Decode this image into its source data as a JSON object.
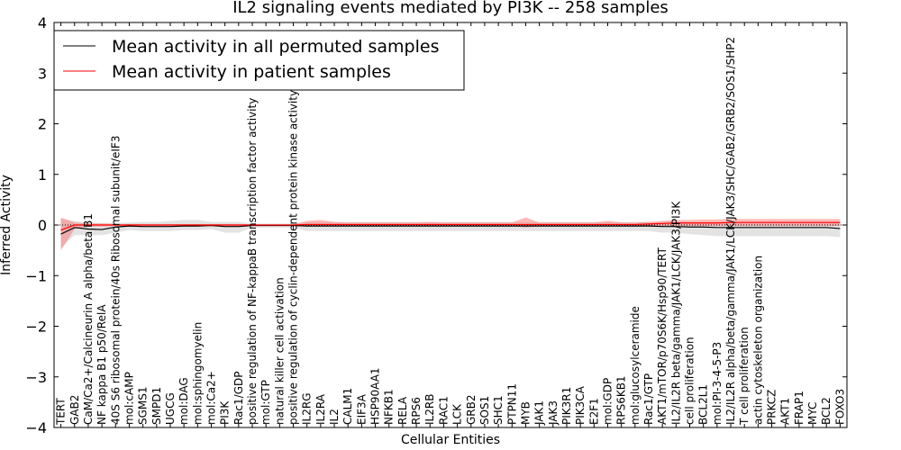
{
  "chart_data": {
    "type": "line",
    "title": "IL2 signaling events mediated by PI3K -- 258 samples",
    "xlabel": "Cellular Entities",
    "ylabel": "Inferred Activity",
    "ylim": [
      -4,
      4
    ],
    "yticks": [
      -4,
      -3,
      -2,
      -1,
      0,
      1,
      2,
      3,
      4
    ],
    "ytick_labels": [
      "−4",
      "−3",
      "−2",
      "−1",
      "0",
      "1",
      "2",
      "3",
      "4"
    ],
    "grid": false,
    "legend_position": "top-left",
    "colors": {
      "permuted": "#000000",
      "patient": "#ff0000",
      "permuted_band": "#cccccc",
      "patient_band": "#ff6666"
    },
    "categories": [
      "TERT",
      "GAB2",
      "CaM/Ca2+/Calcineurin A alpha/beta B1",
      "NF kappa B1 p50/RelA",
      "40S S6 ribosomal protein/40s Ribosomal subunit/eIF3",
      "mol:cAMP",
      "SGMS1",
      "SMPD1",
      "UGCG",
      "mol:DAG",
      "mol:sphingomyelin",
      "mol:Ca2+",
      "PI3K",
      "Rac1/GDP",
      "positive regulation of NF-kappaB transcription factor activity",
      "mol:GTP",
      "natural killer cell activation",
      "positive regulation of cyclin-dependent protein kinase activity",
      "IL2RG",
      "IL2RA",
      "IL2",
      "CALM1",
      "EIF3A",
      "HSP90AA1",
      "NFKB1",
      "RELA",
      "RPS6",
      "IL2RB",
      "RAC1",
      "LCK",
      "GRB2",
      "SOS1",
      "SHC1",
      "PTPN11",
      "MYB",
      "JAK1",
      "JAK3",
      "PIK3R1",
      "PIK3CA",
      "E2F1",
      "mol:GDP",
      "RPS6KB1",
      "mol:glucosylceramide",
      "Rac1/GTP",
      "AKT1/mTOR/p70S6K/Hsp90/TERT",
      "IL2/IL2R beta/gamma/JAK1/LCK/JAK3/PI3K",
      "cell proliferation",
      "BCL2L1",
      "mol:PI-3-4-5-P3",
      "IL2/IL2R alpha/beta/gamma/JAK1/LCK/JAK3/SHC/GAB2/GRB2/SOS1/SHP2",
      "T cell proliferation",
      "actin cytoskeleton organization",
      "PRKCZ",
      "AKT1",
      "FRAP1",
      "MYC",
      "BCL2",
      "FOXO3"
    ],
    "series": [
      {
        "name": "Mean activity in all permuted samples",
        "values": [
          -0.18,
          -0.05,
          -0.08,
          -0.09,
          -0.04,
          -0.02,
          -0.03,
          -0.03,
          -0.03,
          -0.02,
          -0.02,
          -0.01,
          -0.03,
          -0.03,
          -0.01,
          -0.01,
          -0.01,
          -0.01,
          -0.02,
          -0.02,
          -0.02,
          -0.02,
          -0.02,
          -0.02,
          -0.02,
          -0.02,
          -0.02,
          -0.02,
          -0.02,
          -0.02,
          -0.02,
          -0.02,
          -0.02,
          -0.02,
          -0.02,
          -0.02,
          -0.02,
          -0.02,
          -0.02,
          -0.02,
          -0.02,
          -0.02,
          -0.02,
          -0.02,
          -0.03,
          -0.03,
          -0.04,
          -0.04,
          -0.05,
          -0.05,
          -0.05,
          -0.05,
          -0.05,
          -0.05,
          -0.05,
          -0.05,
          -0.05,
          -0.07
        ],
        "lower": [
          -0.45,
          -0.2,
          -0.2,
          -0.2,
          -0.15,
          -0.1,
          -0.12,
          -0.12,
          -0.12,
          -0.1,
          -0.1,
          -0.08,
          -0.15,
          -0.15,
          -0.05,
          -0.05,
          -0.05,
          -0.05,
          -0.12,
          -0.12,
          -0.12,
          -0.12,
          -0.12,
          -0.12,
          -0.12,
          -0.12,
          -0.12,
          -0.12,
          -0.12,
          -0.12,
          -0.12,
          -0.12,
          -0.12,
          -0.12,
          -0.12,
          -0.12,
          -0.12,
          -0.12,
          -0.12,
          -0.12,
          -0.12,
          -0.12,
          -0.12,
          -0.12,
          -0.15,
          -0.15,
          -0.18,
          -0.2,
          -0.22,
          -0.22,
          -0.22,
          -0.22,
          -0.22,
          -0.22,
          -0.22,
          -0.22,
          -0.22,
          -0.24
        ],
        "upper": [
          0.12,
          0.08,
          0.05,
          0.04,
          0.04,
          0.05,
          0.06,
          0.06,
          0.08,
          0.1,
          0.1,
          0.06,
          0.06,
          0.06,
          0.03,
          0.03,
          0.03,
          0.03,
          0.06,
          0.06,
          0.06,
          0.06,
          0.06,
          0.06,
          0.06,
          0.06,
          0.06,
          0.06,
          0.06,
          0.06,
          0.06,
          0.06,
          0.06,
          0.06,
          0.06,
          0.06,
          0.06,
          0.06,
          0.06,
          0.06,
          0.06,
          0.06,
          0.06,
          0.06,
          0.06,
          0.06,
          0.06,
          0.06,
          0.06,
          0.06,
          0.06,
          0.06,
          0.06,
          0.06,
          0.06,
          0.06,
          0.06,
          0.06
        ]
      },
      {
        "name": "Mean activity in patient samples",
        "values": [
          -0.1,
          0.0,
          0.0,
          0.0,
          0.0,
          0.0,
          0.0,
          0.0,
          0.0,
          0.0,
          0.0,
          0.0,
          0.0,
          0.0,
          0.0,
          0.0,
          0.0,
          0.0,
          0.01,
          0.01,
          0.01,
          0.01,
          0.01,
          0.01,
          0.01,
          0.01,
          0.01,
          0.01,
          0.01,
          0.01,
          0.01,
          0.01,
          0.01,
          0.01,
          0.01,
          0.01,
          0.01,
          0.01,
          0.01,
          0.01,
          0.01,
          0.01,
          0.01,
          0.02,
          0.03,
          0.04,
          0.04,
          0.04,
          0.04,
          0.05,
          0.05,
          0.05,
          0.05,
          0.05,
          0.05,
          0.05,
          0.05,
          0.05
        ],
        "lower": [
          -0.5,
          -0.08,
          -0.03,
          -0.03,
          -0.02,
          -0.02,
          -0.02,
          -0.02,
          -0.02,
          -0.02,
          -0.02,
          -0.02,
          -0.02,
          -0.02,
          -0.01,
          -0.01,
          -0.01,
          -0.01,
          -0.03,
          -0.03,
          -0.02,
          -0.02,
          -0.02,
          -0.02,
          -0.02,
          -0.02,
          -0.02,
          -0.02,
          -0.02,
          -0.02,
          -0.02,
          -0.02,
          -0.02,
          -0.02,
          -0.05,
          -0.02,
          -0.02,
          -0.02,
          -0.02,
          -0.02,
          -0.02,
          -0.02,
          -0.02,
          -0.02,
          -0.02,
          -0.02,
          -0.02,
          -0.02,
          -0.02,
          -0.02,
          -0.02,
          -0.02,
          -0.02,
          -0.02,
          -0.02,
          -0.02,
          -0.02,
          -0.02
        ],
        "upper": [
          0.15,
          0.05,
          0.03,
          0.03,
          0.02,
          0.02,
          0.02,
          0.02,
          0.02,
          0.02,
          0.02,
          0.02,
          0.02,
          0.02,
          0.01,
          0.01,
          0.01,
          0.01,
          0.08,
          0.1,
          0.06,
          0.05,
          0.05,
          0.05,
          0.05,
          0.05,
          0.05,
          0.06,
          0.05,
          0.05,
          0.05,
          0.05,
          0.05,
          0.05,
          0.15,
          0.05,
          0.05,
          0.05,
          0.05,
          0.05,
          0.08,
          0.05,
          0.05,
          0.06,
          0.08,
          0.1,
          0.1,
          0.11,
          0.11,
          0.12,
          0.12,
          0.12,
          0.12,
          0.12,
          0.12,
          0.12,
          0.12,
          0.12
        ]
      }
    ]
  }
}
